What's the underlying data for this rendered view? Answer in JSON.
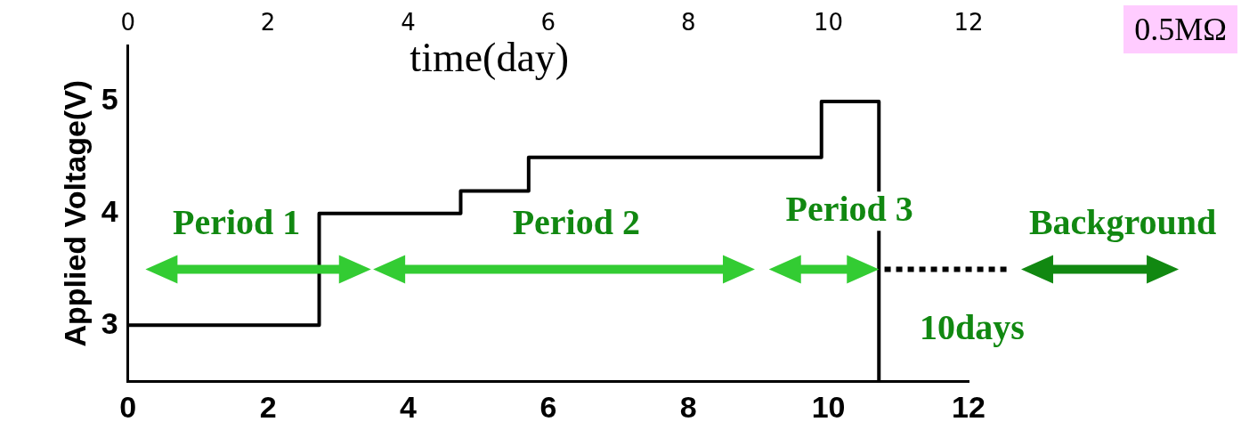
{
  "chart_data": {
    "type": "step",
    "ylabel": "Applied Voltage(V)",
    "x2label": "time(day)",
    "x": [
      0,
      2.73,
      4.75,
      5.72,
      9.9,
      10.72
    ],
    "series": [
      {
        "color": "#000000",
        "values": [
          3,
          4,
          4.2,
          4.5,
          5,
          2.5
        ]
      }
    ],
    "xlim": [
      0,
      12
    ],
    "xticks": [
      0,
      2,
      4,
      6,
      8,
      10,
      12
    ],
    "x2lim": [
      0,
      12
    ],
    "x2ticks": [
      0,
      2,
      4,
      6,
      8,
      10,
      12
    ],
    "ylim": [
      2.5,
      5.5
    ],
    "yticks": [
      3,
      4,
      5
    ],
    "grid": false,
    "legend": false,
    "marker": "none",
    "line_style": "solid",
    "annotations": [
      "Period 1",
      "Period 2",
      "Period 3",
      "10days",
      "Background",
      "0.5MΩ"
    ]
  }
}
